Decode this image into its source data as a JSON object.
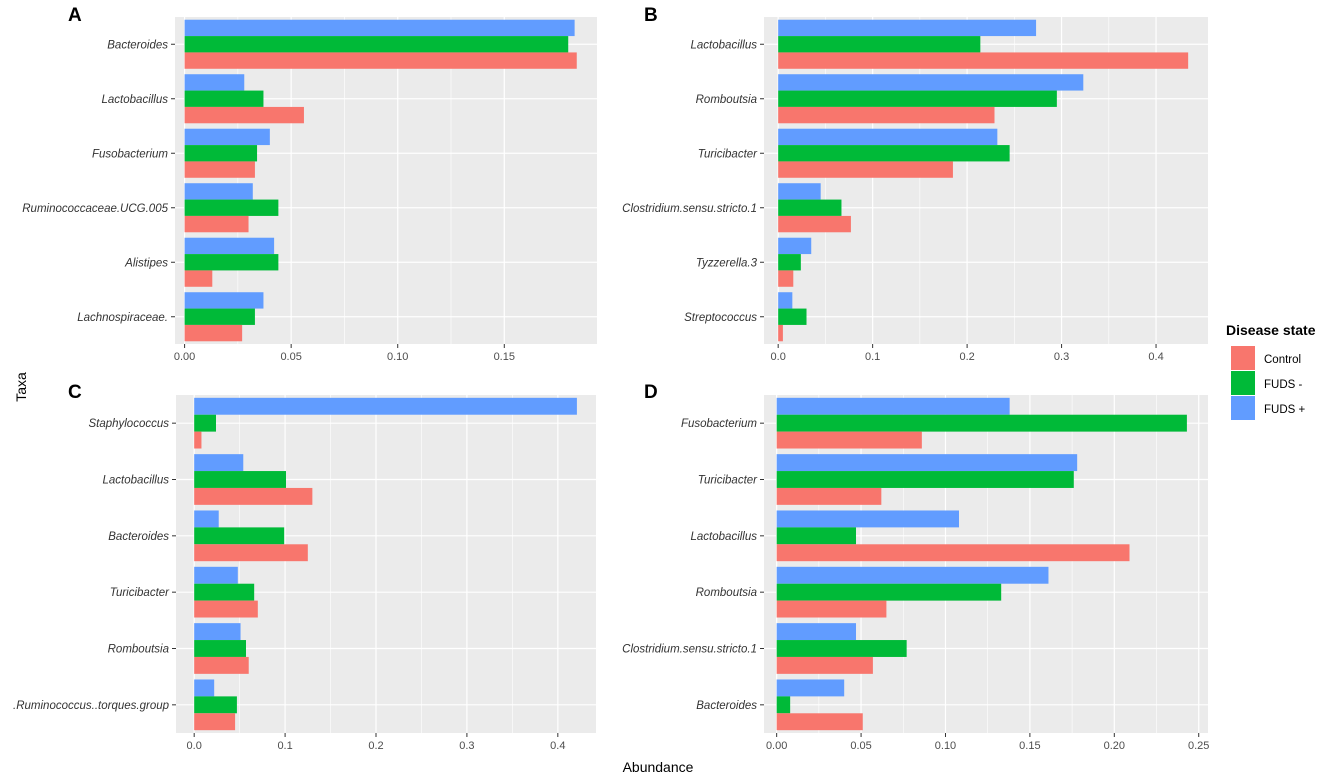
{
  "figure": {
    "xlabel": "Abundance",
    "ylabel": "Taxa"
  },
  "legend": {
    "title": "Disease state",
    "items": [
      {
        "label": "Control",
        "color": "#F8766D"
      },
      {
        "label": "FUDS -",
        "color": "#00BA38"
      },
      {
        "label": "FUDS +",
        "color": "#619CFF"
      }
    ]
  },
  "chart_data": [
    {
      "type": "bar",
      "orientation": "horizontal",
      "panel": "A",
      "categories": [
        "Bacteroides",
        "Lactobacillus",
        "Fusobacterium",
        "Ruminococcaceae.UCG.005",
        "Alistipes",
        "Lachnospiraceae."
      ],
      "series": [
        {
          "name": "Control",
          "values": [
            0.184,
            0.056,
            0.033,
            0.03,
            0.013,
            0.027
          ]
        },
        {
          "name": "FUDS -",
          "values": [
            0.18,
            0.037,
            0.034,
            0.044,
            0.044,
            0.033
          ]
        },
        {
          "name": "FUDS +",
          "values": [
            0.183,
            0.028,
            0.04,
            0.032,
            0.042,
            0.037
          ]
        }
      ],
      "xlim": [
        -0.0045,
        0.1935
      ],
      "xticks": [
        0,
        0.05,
        0.1,
        0.15
      ],
      "xtick_labels": [
        "0.00",
        "0.05",
        "0.10",
        "0.15"
      ]
    },
    {
      "type": "bar",
      "orientation": "horizontal",
      "panel": "B",
      "categories": [
        "Lactobacillus",
        "Romboutsia",
        "Turicibacter",
        "Clostridium.sensu.stricto.1",
        "Tyzzerella.3",
        "Streptococcus"
      ],
      "series": [
        {
          "name": "Control",
          "values": [
            0.434,
            0.229,
            0.185,
            0.077,
            0.016,
            0.005
          ]
        },
        {
          "name": "FUDS -",
          "values": [
            0.214,
            0.295,
            0.245,
            0.067,
            0.024,
            0.03
          ]
        },
        {
          "name": "FUDS +",
          "values": [
            0.273,
            0.323,
            0.232,
            0.045,
            0.035,
            0.015
          ]
        }
      ],
      "xlim": [
        -0.015,
        0.455
      ],
      "xticks": [
        0,
        0.1,
        0.2,
        0.3,
        0.4
      ],
      "xtick_labels": [
        "0.0",
        "0.1",
        "0.2",
        "0.3",
        "0.4"
      ]
    },
    {
      "type": "bar",
      "orientation": "horizontal",
      "panel": "C",
      "categories": [
        "Staphylococcus",
        "Lactobacillus",
        "Bacteroides",
        "Turicibacter",
        "Romboutsia",
        ".Ruminococcus..torques.group"
      ],
      "series": [
        {
          "name": "Control",
          "values": [
            0.008,
            0.13,
            0.125,
            0.07,
            0.06,
            0.045
          ]
        },
        {
          "name": "FUDS -",
          "values": [
            0.024,
            0.101,
            0.099,
            0.066,
            0.057,
            0.047
          ]
        },
        {
          "name": "FUDS +",
          "values": [
            0.421,
            0.054,
            0.027,
            0.048,
            0.051,
            0.022
          ]
        }
      ],
      "xlim": [
        -0.02,
        0.442
      ],
      "xticks": [
        0,
        0.1,
        0.2,
        0.3,
        0.4
      ],
      "xtick_labels": [
        "0.0",
        "0.1",
        "0.2",
        "0.3",
        "0.4"
      ]
    },
    {
      "type": "bar",
      "orientation": "horizontal",
      "panel": "D",
      "categories": [
        "Fusobacterium",
        "Turicibacter",
        "Lactobacillus",
        "Romboutsia",
        "Clostridium.sensu.stricto.1",
        "Bacteroides"
      ],
      "series": [
        {
          "name": "Control",
          "values": [
            0.086,
            0.062,
            0.209,
            0.065,
            0.057,
            0.051
          ]
        },
        {
          "name": "FUDS -",
          "values": [
            0.243,
            0.176,
            0.047,
            0.133,
            0.077,
            0.008
          ]
        },
        {
          "name": "FUDS +",
          "values": [
            0.138,
            0.178,
            0.108,
            0.161,
            0.047,
            0.04
          ]
        }
      ],
      "xlim": [
        -0.0075,
        0.2555
      ],
      "xticks": [
        0,
        0.05,
        0.1,
        0.15,
        0.2,
        0.25
      ],
      "xtick_labels": [
        "0.00",
        "0.05",
        "0.10",
        "0.15",
        "0.20",
        "0.25"
      ]
    }
  ]
}
